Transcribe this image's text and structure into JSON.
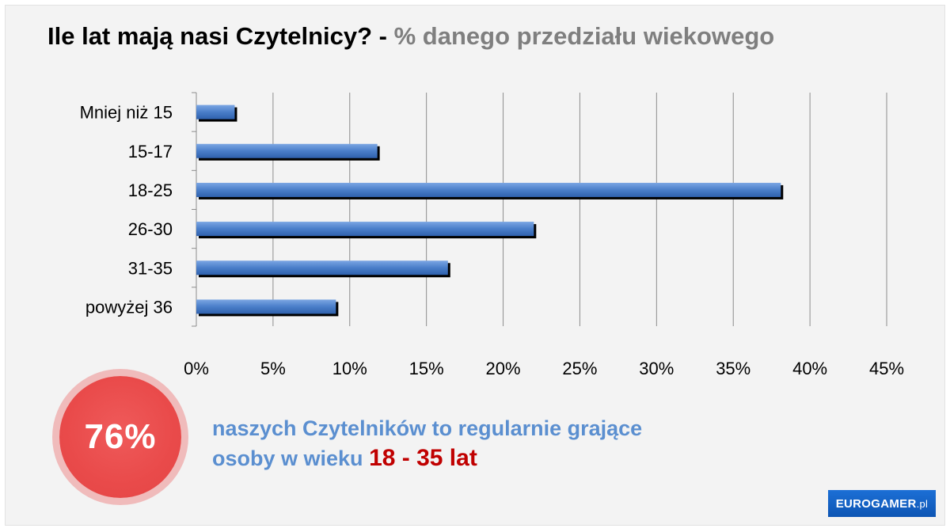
{
  "title": {
    "main": "Ile lat mają nasi Czytelnicy? -",
    "subtitle": "% danego przedziału wiekowego"
  },
  "chart_data": {
    "type": "bar",
    "orientation": "horizontal",
    "categories": [
      "Mniej niż 15",
      "15-17",
      "18-25",
      "26-30",
      "31-35",
      "powyżej 36"
    ],
    "values": [
      2.5,
      11.8,
      38.1,
      22.0,
      16.4,
      9.1
    ],
    "xlim": [
      0,
      45
    ],
    "x_ticks": [
      "0%",
      "5%",
      "10%",
      "15%",
      "20%",
      "25%",
      "30%",
      "35%",
      "40%",
      "45%"
    ],
    "tick_step": 5,
    "grid": "vertical",
    "bar_color": "#4a7ec9"
  },
  "highlight": {
    "percent": "76%",
    "line1": "naszych Czytelników to regularnie grające",
    "line2": "osoby w wieku",
    "age_range": "18 - 35 lat"
  },
  "logo": {
    "brand": "EUROGAMER",
    "suffix": ".pl"
  },
  "colors": {
    "highlight_red": "#c00000",
    "note_blue": "#5b8fd0",
    "badge_red": "#e94a4a"
  }
}
